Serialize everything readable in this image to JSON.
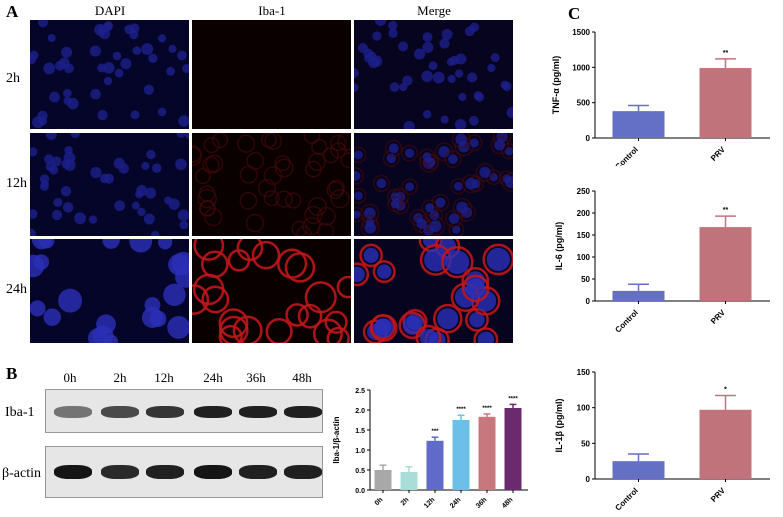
{
  "panel_a": {
    "letter": "A",
    "columns": [
      "DAPI",
      "Iba-1",
      "Merge"
    ],
    "rows": [
      "2h",
      "12h",
      "24h"
    ]
  },
  "panel_b": {
    "letter": "B",
    "lanes": [
      "0h",
      "2h",
      "12h",
      "24h",
      "36h",
      "48h"
    ],
    "blot_rows": [
      "Iba-1",
      "β-actin"
    ],
    "band_intensity": {
      "Iba-1": [
        0.55,
        0.75,
        0.85,
        0.95,
        0.95,
        0.95
      ],
      "β-actin": [
        1.0,
        0.9,
        0.95,
        1.0,
        0.95,
        0.95
      ]
    }
  },
  "panel_c": {
    "letter": "C"
  },
  "chart_data": [
    {
      "type": "bar",
      "ylabel": "Iba-1/β-actin",
      "categories": [
        "0h",
        "2h",
        "12h",
        "24h",
        "36h",
        "48h"
      ],
      "values": [
        0.5,
        0.45,
        1.23,
        1.75,
        1.83,
        2.05
      ],
      "errors": [
        0.12,
        0.13,
        0.09,
        0.12,
        0.07,
        0.09
      ],
      "significance": [
        "",
        "",
        "***",
        "****",
        "****",
        "****"
      ],
      "colors": [
        "#a8a8a8",
        "#a9ded8",
        "#5f6ac9",
        "#6cbfe6",
        "#c7787d",
        "#6b2a6e"
      ],
      "ylim": [
        0,
        2.5
      ],
      "yticks": [
        "0.0",
        "0.5",
        "1.0",
        "1.5",
        "2.0",
        "2.5"
      ]
    },
    {
      "type": "bar",
      "ylabel": "TNF-α (pg/ml)",
      "categories": [
        "Control",
        "PRV"
      ],
      "values": [
        380,
        990
      ],
      "errors": [
        80,
        130
      ],
      "significance": [
        "",
        "**"
      ],
      "colors": [
        "#6470c6",
        "#c0737a"
      ],
      "ylim": [
        0,
        1500
      ],
      "yticks": [
        "0",
        "500",
        "1000",
        "1500"
      ]
    },
    {
      "type": "bar",
      "ylabel": "IL-6 (pg/ml)",
      "categories": [
        "Control",
        "PRV"
      ],
      "values": [
        23,
        168
      ],
      "errors": [
        15,
        25
      ],
      "significance": [
        "",
        "**"
      ],
      "colors": [
        "#6470c6",
        "#c0737a"
      ],
      "ylim": [
        0,
        250
      ],
      "yticks": [
        "0",
        "50",
        "100",
        "150",
        "200",
        "250"
      ]
    },
    {
      "type": "bar",
      "ylabel": "IL-1β (pg/ml)",
      "categories": [
        "Control",
        "PRV"
      ],
      "values": [
        25,
        97
      ],
      "errors": [
        10,
        20
      ],
      "significance": [
        "",
        "*"
      ],
      "colors": [
        "#6470c6",
        "#c0737a"
      ],
      "ylim": [
        0,
        150
      ],
      "yticks": [
        "0",
        "50",
        "100",
        "150"
      ]
    }
  ]
}
